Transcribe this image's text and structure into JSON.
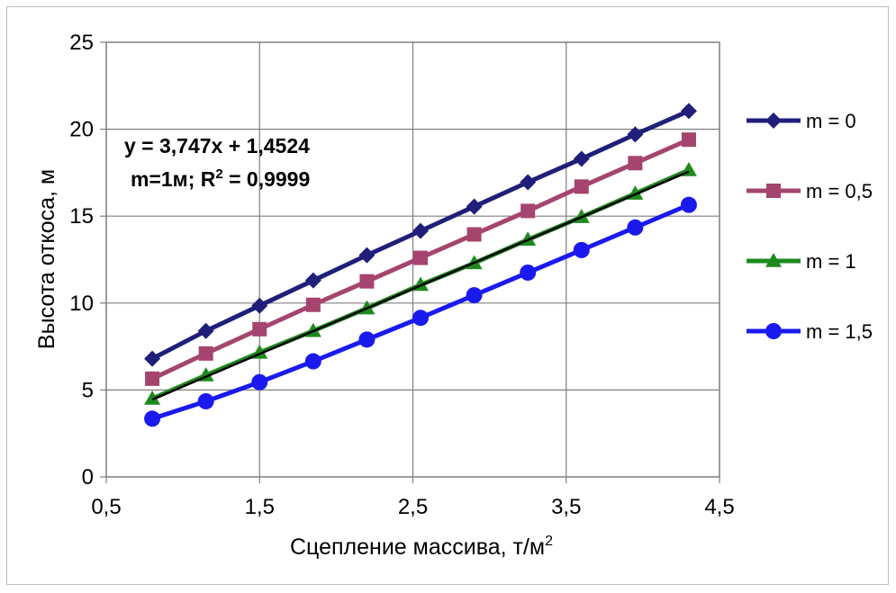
{
  "chart_data": {
    "type": "line",
    "xlabel": "Сцепление массива, т/м",
    "xlabel_sup": "2",
    "ylabel": "Высота откоса, м",
    "xlim": [
      0.5,
      4.5
    ],
    "ylim": [
      0,
      25
    ],
    "x_ticks": [
      "0,5",
      "1,5",
      "2,5",
      "3,5",
      "4,5"
    ],
    "y_ticks": [
      "0",
      "5",
      "10",
      "15",
      "20",
      "25"
    ],
    "grid": true,
    "legend_position": "right",
    "x": [
      0.8,
      1.15,
      1.5,
      1.85,
      2.2,
      2.55,
      2.9,
      3.25,
      3.6,
      3.95,
      4.3
    ],
    "series": [
      {
        "name": "m = 0",
        "color": "#1f1f7a",
        "marker": "diamond",
        "values": [
          6.8,
          8.4,
          9.85,
          11.3,
          12.75,
          14.15,
          15.55,
          16.95,
          18.3,
          19.7,
          21.05
        ]
      },
      {
        "name": "m = 0,5",
        "color": "#a5446e",
        "marker": "square",
        "values": [
          5.65,
          7.1,
          8.5,
          9.9,
          11.25,
          12.6,
          13.95,
          15.3,
          16.7,
          18.05,
          19.4
        ]
      },
      {
        "name": "m = 1",
        "color": "#1e8a1e",
        "marker": "triangle",
        "values": [
          4.5,
          5.85,
          7.15,
          8.4,
          9.7,
          11.05,
          12.3,
          13.65,
          14.95,
          16.3,
          17.65
        ]
      },
      {
        "name": "m = 1,5",
        "color": "#1a1aee",
        "marker": "circle",
        "values": [
          3.35,
          4.35,
          5.45,
          6.65,
          7.9,
          9.15,
          10.45,
          11.75,
          13.05,
          14.35,
          15.65
        ]
      }
    ],
    "trendline": {
      "series": "m = 1",
      "slope": 3.747,
      "intercept": 1.4524,
      "color": "#000000"
    },
    "annotation": {
      "line1": "y = 3,747x + 1,4524",
      "line2_prefix": "m=1м; R",
      "line2_sup": "2",
      "line2_suffix": " = 0,9999"
    }
  }
}
